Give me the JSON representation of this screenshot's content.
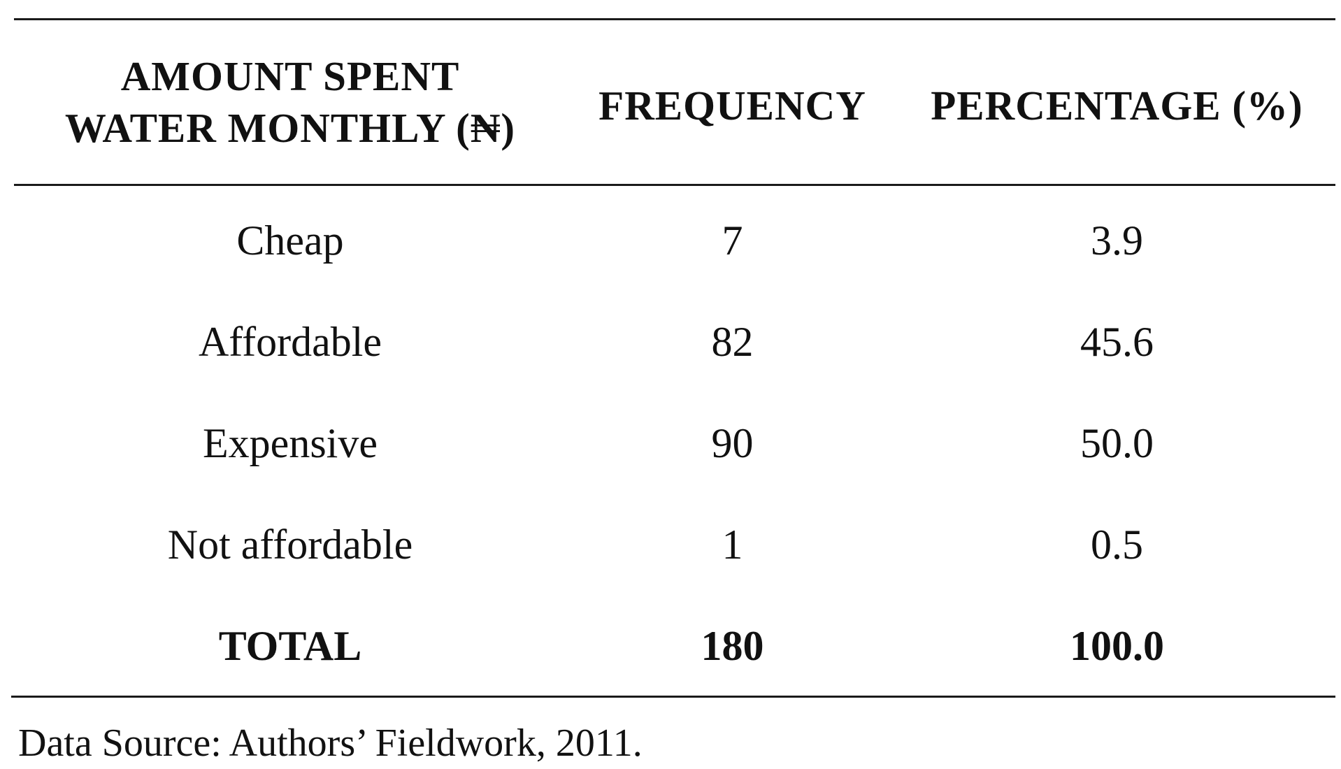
{
  "table": {
    "headers": [
      {
        "line1": "AMOUNT SPENT",
        "line2": "WATER MONTHLY (₦)"
      },
      {
        "line1": "FREQUENCY"
      },
      {
        "line1": "PERCENTAGE (%)"
      }
    ],
    "rows": [
      {
        "category": "Cheap",
        "frequency": "7",
        "percentage": "3.9"
      },
      {
        "category": "Affordable",
        "frequency": "82",
        "percentage": "45.6"
      },
      {
        "category": "Expensive",
        "frequency": "90",
        "percentage": "50.0"
      },
      {
        "category": "Not affordable",
        "frequency": "1",
        "percentage": "0.5"
      }
    ],
    "total": {
      "category": "TOTAL",
      "frequency": "180",
      "percentage": "100.0"
    }
  },
  "source": "Data Source: Authors’ Fieldwork, 2011."
}
